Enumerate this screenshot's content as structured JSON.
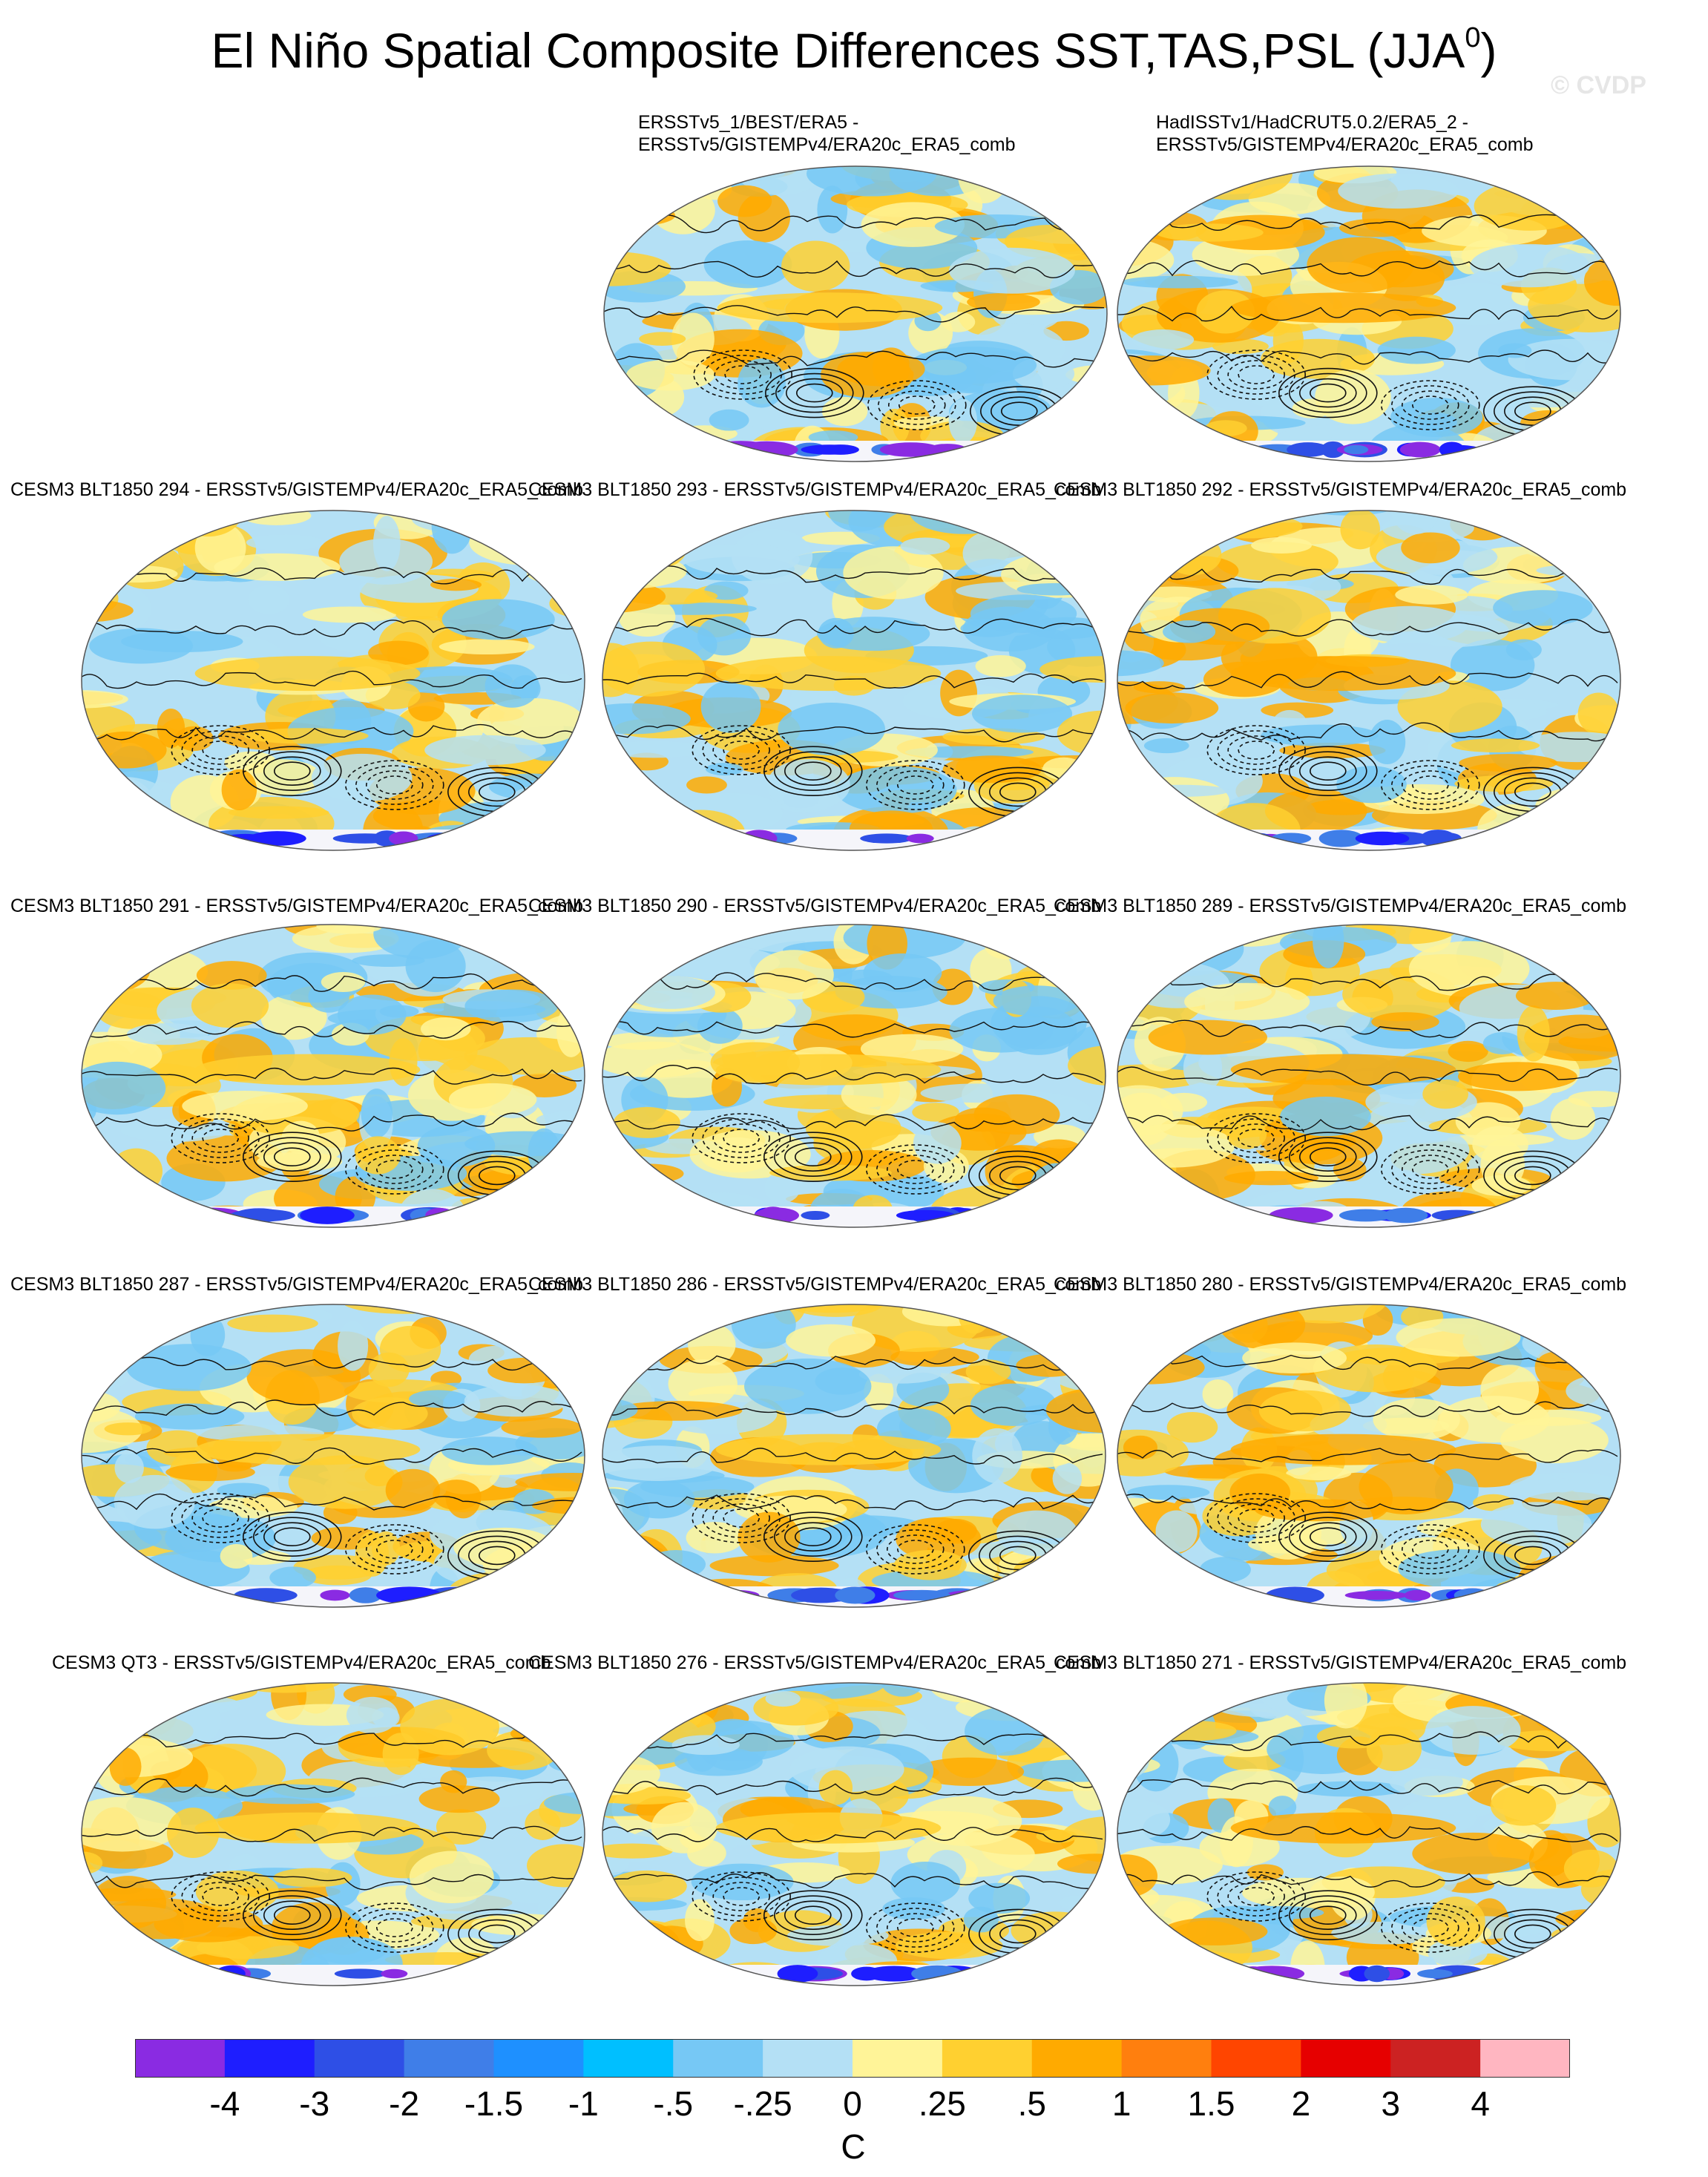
{
  "header": {
    "title": "El Niño Spatial Composite Differences SST,TAS,PSL (JJA",
    "title_sup": "0",
    "title_close": ")",
    "watermark": "© CVDP"
  },
  "chart_data": {
    "type": "heatmap",
    "description_units": "C",
    "panels": [
      {
        "title_line1": "ERSSTv5_1/BEST/ERA5 -",
        "title_line2": "ERSSTv5/GISTEMPv4/ERA20c_ERA5_comb"
      },
      {
        "title_line1": "HadISSTv1/HadCRUT5.0.2/ERA5_2 -",
        "title_line2": "ERSSTv5/GISTEMPv4/ERA20c_ERA5_comb"
      },
      {
        "title_line1": "CESM3 BLT1850 294 - ERSSTv5/GISTEMPv4/ERA20c_ERA5_comb"
      },
      {
        "title_line1": "CESM3 BLT1850 293 - ERSSTv5/GISTEMPv4/ERA20c_ERA5_comb"
      },
      {
        "title_line1": "CESM3 BLT1850 292 - ERSSTv5/GISTEMPv4/ERA20c_ERA5_comb"
      },
      {
        "title_line1": "CESM3 BLT1850 291 - ERSSTv5/GISTEMPv4/ERA20c_ERA5_comb"
      },
      {
        "title_line1": "CESM3 BLT1850 290 - ERSSTv5/GISTEMPv4/ERA20c_ERA5_comb"
      },
      {
        "title_line1": "CESM3 BLT1850 289 - ERSSTv5/GISTEMPv4/ERA20c_ERA5_comb"
      },
      {
        "title_line1": "CESM3 BLT1850 287 - ERSSTv5/GISTEMPv4/ERA20c_ERA5_comb"
      },
      {
        "title_line1": "CESM3 BLT1850 286 - ERSSTv5/GISTEMPv4/ERA20c_ERA5_comb"
      },
      {
        "title_line1": "CESM3 BLT1850 280 - ERSSTv5/GISTEMPv4/ERA20c_ERA5_comb"
      },
      {
        "title_line1": "CESM3 QT3 - ERSSTv5/GISTEMPv4/ERA20c_ERA5_comb"
      },
      {
        "title_line1": "CESM3 BLT1850 276 - ERSSTv5/GISTEMPv4/ERA20c_ERA5_comb"
      },
      {
        "title_line1": "CESM3 BLT1850 271 - ERSSTv5/GISTEMPv4/ERA20c_ERA5_comb"
      }
    ],
    "colorbar": {
      "unit_label": "C",
      "colors": [
        "#8a2be2",
        "#1e1eff",
        "#2e4fe6",
        "#3f7ee8",
        "#1e90ff",
        "#00bfff",
        "#76c8f5",
        "#b4e0f5",
        "#fff498",
        "#ffd030",
        "#ffaa00",
        "#ff7f0e",
        "#ff4500",
        "#e60000",
        "#cc2222",
        "#ffb6c1"
      ],
      "tick_labels": [
        "-4",
        "-3",
        "-2",
        "-1.5",
        "-1",
        "-.5",
        "-.25",
        "0",
        ".25",
        ".5",
        "1",
        "1.5",
        "2",
        "3",
        "4"
      ]
    }
  }
}
